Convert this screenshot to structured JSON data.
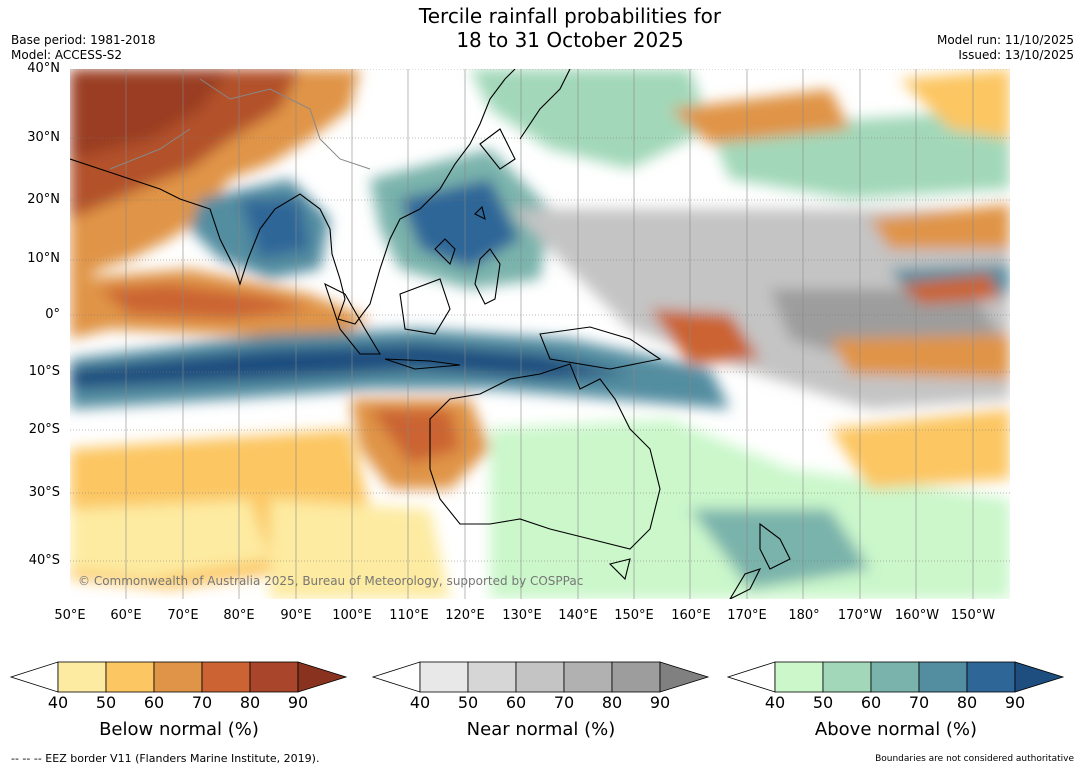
{
  "title_line1": "Tercile rainfall probabilities for",
  "title_line2": "18 to 31 October 2025",
  "base_period": "Base period: 1981-2018",
  "model": "Model: ACCESS-S2",
  "model_run": "Model run: 11/10/2025",
  "issued": "Issued: 13/10/2025",
  "copyright": "© Commonwealth of Australia 2025, Bureau of Meteorology, supported by COSPPac",
  "lat_labels": [
    "40°N",
    "30°N",
    "20°N",
    "10°N",
    "0°",
    "10°S",
    "20°S",
    "30°S",
    "40°S"
  ],
  "lon_labels": [
    "50°E",
    "60°E",
    "70°E",
    "80°E",
    "90°E",
    "100°E",
    "110°E",
    "120°E",
    "130°E",
    "140°E",
    "150°E",
    "160°E",
    "170°E",
    "180°",
    "170°W",
    "160°W",
    "150°W"
  ],
  "legends": [
    {
      "title": "Below normal (%)",
      "ticks": [
        "40",
        "50",
        "60",
        "70",
        "80",
        "90"
      ],
      "colors": [
        "#ffffff",
        "#fdeba1",
        "#fcc662",
        "#e09447",
        "#cb6332",
        "#a9452a",
        "#8a3220"
      ]
    },
    {
      "title": "Near normal (%)",
      "ticks": [
        "40",
        "50",
        "60",
        "70",
        "80",
        "90"
      ],
      "colors": [
        "#ffffff",
        "#e8e8e8",
        "#d6d6d6",
        "#c4c4c4",
        "#b1b1b1",
        "#9d9d9d",
        "#808080"
      ]
    },
    {
      "title": "Above normal (%)",
      "ticks": [
        "40",
        "50",
        "60",
        "70",
        "80",
        "90"
      ],
      "colors": [
        "#ffffff",
        "#cbf7cb",
        "#a2d8b9",
        "#7ab3ac",
        "#538da0",
        "#2f6698",
        "#1e4d7f"
      ]
    }
  ],
  "footer_left": "--  --  -- EEZ border V11 (Flanders Marine Institute, 2019).",
  "footer_right": "Boundaries are not considered authoritative"
}
